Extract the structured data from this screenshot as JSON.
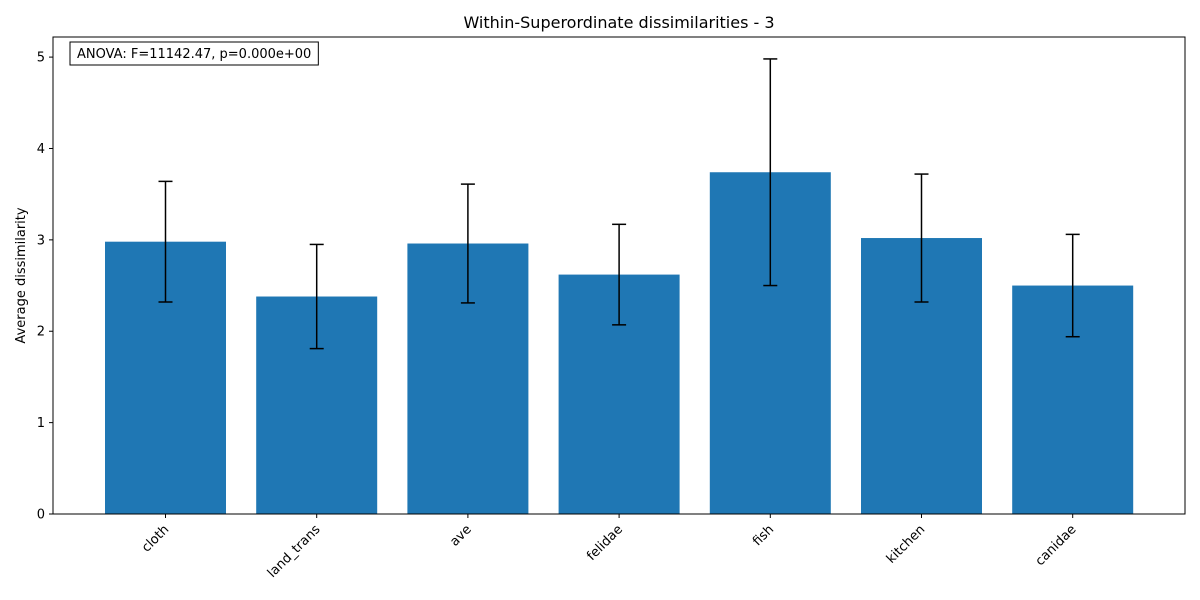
{
  "chart_data": {
    "type": "bar",
    "title": "Within-Superordinate dissimilarities - 3",
    "xlabel": "",
    "ylabel": "Average dissimilarity",
    "categories": [
      "cloth",
      "land_trans",
      "ave",
      "felidae",
      "fish",
      "kitchen",
      "canidae"
    ],
    "values": [
      2.98,
      2.38,
      2.96,
      2.62,
      3.74,
      3.02,
      2.5
    ],
    "errors": [
      0.66,
      0.57,
      0.65,
      0.55,
      1.24,
      0.7,
      0.56
    ],
    "ylim": [
      0,
      5.22
    ],
    "yticks": [
      0,
      1,
      2,
      3,
      4,
      5
    ],
    "grid": false,
    "bar_color": "#1f77b4",
    "error_color": "#000000",
    "annotation": "ANOVA: F=11142.47, p=0.000e+00"
  }
}
